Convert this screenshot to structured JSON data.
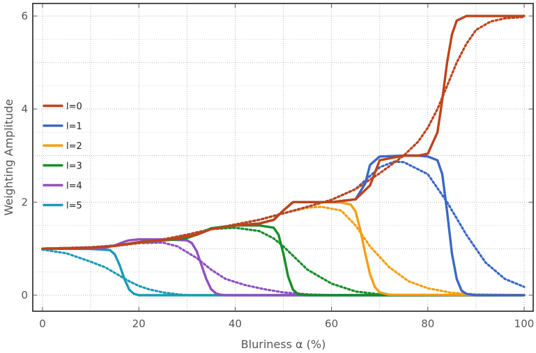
{
  "chart_data": {
    "type": "line",
    "title": "",
    "xlabel": "Bluriness α (%)",
    "ylabel": "Weighting Amplitude",
    "xlim": [
      0,
      100
    ],
    "ylim": [
      0,
      6
    ],
    "xticks": [
      "0",
      "20",
      "40",
      "60",
      "80",
      "100"
    ],
    "yticks": [
      "0",
      "2",
      "4",
      "6"
    ],
    "grid": true,
    "grid_style": "dotted",
    "legend_position": "left-middle",
    "series": [
      {
        "name": "l=0",
        "color": "#c0421a",
        "solid": {
          "x": [
            0,
            10,
            15,
            20,
            28,
            32,
            35,
            40,
            45,
            48,
            50,
            52,
            55,
            60,
            65,
            68,
            70,
            75,
            78,
            80,
            82,
            83,
            84,
            85,
            86,
            88,
            90,
            100
          ],
          "y": [
            1,
            1.02,
            1.06,
            1.14,
            1.22,
            1.3,
            1.42,
            1.5,
            1.54,
            1.62,
            1.82,
            2.0,
            2.0,
            2.0,
            2.06,
            2.36,
            2.9,
            3.0,
            3.0,
            3.04,
            3.5,
            4.2,
            5.0,
            5.6,
            5.9,
            6.0,
            6.0,
            6.0
          ]
        },
        "dotted": {
          "x": [
            0,
            10,
            15,
            20,
            25,
            30,
            35,
            40,
            45,
            50,
            55,
            60,
            65,
            70,
            75,
            78,
            80,
            82,
            84,
            86,
            88,
            90,
            93,
            96,
            100
          ],
          "y": [
            1,
            1.03,
            1.06,
            1.12,
            1.2,
            1.3,
            1.42,
            1.52,
            1.62,
            1.76,
            1.9,
            2.05,
            2.28,
            2.62,
            3.0,
            3.3,
            3.6,
            4.0,
            4.5,
            5.0,
            5.4,
            5.7,
            5.88,
            5.95,
            5.98
          ]
        }
      },
      {
        "name": "l=1",
        "color": "#3a68c8",
        "solid": {
          "x": [
            0,
            10,
            15,
            20,
            28,
            32,
            35,
            40,
            45,
            48,
            50,
            52,
            55,
            60,
            65,
            67,
            68,
            70,
            75,
            78,
            80,
            82,
            83,
            84,
            85,
            86,
            87,
            88,
            90,
            100
          ],
          "y": [
            1,
            1.02,
            1.06,
            1.14,
            1.22,
            1.3,
            1.42,
            1.5,
            1.54,
            1.62,
            1.82,
            2.0,
            2.0,
            2.0,
            2.06,
            2.4,
            2.8,
            2.98,
            3.0,
            3.0,
            2.98,
            2.9,
            2.6,
            1.8,
            0.9,
            0.35,
            0.1,
            0.03,
            0.0,
            0.0
          ]
        },
        "dotted": {
          "x": [
            0,
            10,
            15,
            20,
            25,
            30,
            35,
            40,
            45,
            50,
            55,
            60,
            65,
            70,
            73,
            75,
            80,
            84,
            88,
            92,
            96,
            100
          ],
          "y": [
            1,
            1.03,
            1.06,
            1.12,
            1.2,
            1.3,
            1.42,
            1.52,
            1.62,
            1.76,
            1.9,
            2.05,
            2.28,
            2.75,
            2.87,
            2.86,
            2.6,
            2.0,
            1.3,
            0.7,
            0.35,
            0.18
          ]
        }
      },
      {
        "name": "l=2",
        "color": "#f59e12",
        "solid": {
          "x": [
            0,
            10,
            15,
            20,
            28,
            32,
            35,
            40,
            45,
            48,
            50,
            52,
            55,
            60,
            62,
            64,
            65,
            66,
            67,
            68,
            69,
            70,
            72,
            100
          ],
          "y": [
            1,
            1.02,
            1.06,
            1.14,
            1.22,
            1.3,
            1.42,
            1.5,
            1.54,
            1.62,
            1.82,
            2.0,
            2.0,
            2.0,
            1.99,
            1.95,
            1.8,
            1.4,
            0.9,
            0.45,
            0.18,
            0.06,
            0.01,
            0.0
          ]
        },
        "dotted": {
          "x": [
            0,
            10,
            15,
            20,
            25,
            30,
            35,
            40,
            45,
            50,
            55,
            58,
            62,
            65,
            68,
            72,
            76,
            80,
            85,
            90,
            100
          ],
          "y": [
            1,
            1.03,
            1.06,
            1.12,
            1.2,
            1.3,
            1.42,
            1.52,
            1.62,
            1.76,
            1.88,
            1.9,
            1.82,
            1.5,
            1.05,
            0.6,
            0.3,
            0.15,
            0.05,
            0.02,
            0.0
          ]
        }
      },
      {
        "name": "l=3",
        "color": "#148f28",
        "solid": {
          "x": [
            0,
            10,
            15,
            20,
            28,
            30,
            32,
            35,
            40,
            45,
            48,
            49,
            50,
            51,
            52,
            53,
            55,
            100
          ],
          "y": [
            1,
            1.02,
            1.06,
            1.14,
            1.2,
            1.23,
            1.3,
            1.44,
            1.5,
            1.5,
            1.45,
            1.3,
            0.9,
            0.4,
            0.12,
            0.03,
            0.0,
            0.0
          ]
        },
        "dotted": {
          "x": [
            0,
            10,
            15,
            20,
            25,
            30,
            35,
            40,
            45,
            48,
            50,
            52,
            55,
            60,
            65,
            70,
            75,
            100
          ],
          "y": [
            1,
            1.03,
            1.06,
            1.12,
            1.2,
            1.3,
            1.42,
            1.45,
            1.38,
            1.22,
            1.05,
            0.85,
            0.55,
            0.25,
            0.08,
            0.02,
            0.0,
            0.0
          ]
        }
      },
      {
        "name": "l=4",
        "color": "#9050c0",
        "solid": {
          "x": [
            0,
            10,
            13,
            15,
            17,
            18,
            20,
            25,
            30,
            31,
            32,
            33,
            34,
            35,
            36,
            37,
            38,
            100
          ],
          "y": [
            1,
            1.0,
            1.02,
            1.07,
            1.15,
            1.18,
            1.2,
            1.2,
            1.18,
            1.12,
            0.95,
            0.65,
            0.35,
            0.13,
            0.04,
            0.01,
            0.0,
            0.0
          ]
        },
        "dotted": {
          "x": [
            0,
            10,
            15,
            18,
            20,
            25,
            28,
            32,
            35,
            38,
            42,
            46,
            50,
            55,
            60,
            100
          ],
          "y": [
            1,
            1.03,
            1.07,
            1.1,
            1.12,
            1.13,
            1.05,
            0.8,
            0.55,
            0.35,
            0.22,
            0.13,
            0.06,
            0.02,
            0.0,
            0.0
          ]
        }
      },
      {
        "name": "l=5",
        "color": "#1a9ab8",
        "solid": {
          "x": [
            0,
            10,
            14,
            15,
            16,
            17,
            18,
            19,
            20,
            22,
            100
          ],
          "y": [
            1,
            0.995,
            0.97,
            0.88,
            0.65,
            0.35,
            0.12,
            0.03,
            0.0,
            0.0,
            0.0
          ]
        },
        "dotted": {
          "x": [
            0,
            5,
            10,
            13,
            15,
            18,
            20,
            22,
            25,
            28,
            30,
            35,
            100
          ],
          "y": [
            0.98,
            0.9,
            0.72,
            0.6,
            0.48,
            0.3,
            0.2,
            0.13,
            0.06,
            0.02,
            0.0,
            0.0,
            0.0
          ]
        }
      }
    ]
  }
}
